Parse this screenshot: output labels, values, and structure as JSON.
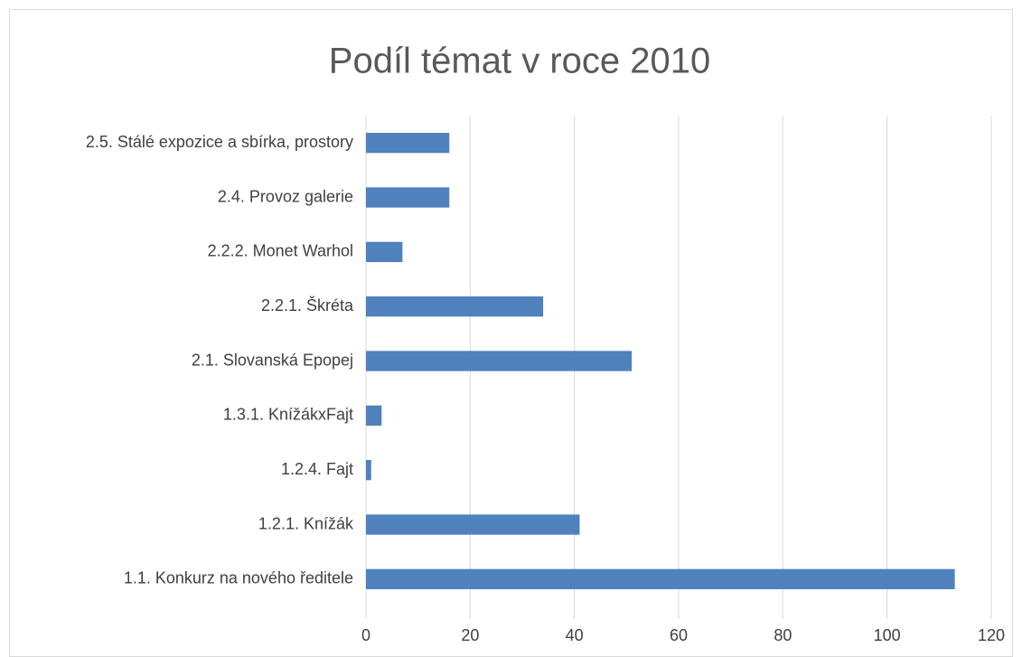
{
  "chart_data": {
    "type": "bar",
    "orientation": "horizontal",
    "title": "Podíl témat v roce 2010",
    "categories": [
      "1.1. Konkurz na nového ředitele",
      "1.2.1. Knížák",
      "1.2.4. Fajt",
      "1.3.1. KnížákxFajt",
      "2.1. Slovanská Epopej",
      "2.2.1. Škréta",
      "2.2.2. Monet Warhol",
      "2.4. Provoz galerie",
      "2.5. Stálé expozice a sbírka, prostory"
    ],
    "values": [
      113,
      41,
      1,
      3,
      51,
      34,
      7,
      16,
      16
    ],
    "color": "#4f81bd",
    "xlim": [
      0,
      120
    ],
    "xticks": [
      0,
      20,
      40,
      60,
      80,
      100,
      120
    ],
    "grid": true
  }
}
